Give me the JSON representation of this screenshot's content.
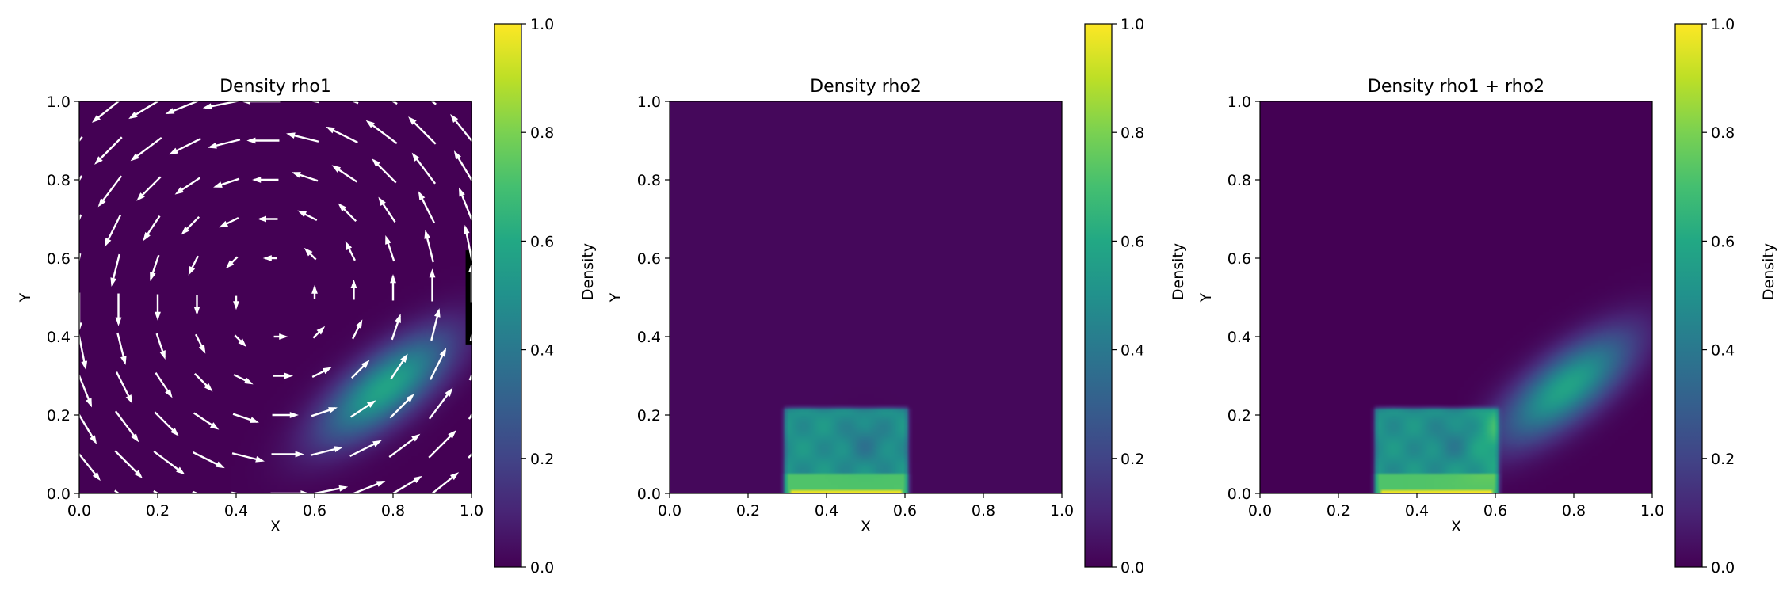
{
  "chart_data": [
    {
      "type": "heatmap",
      "title": "Density rho1",
      "xlabel": "X",
      "ylabel": "Y",
      "xlim": [
        0,
        1
      ],
      "ylim": [
        0,
        1
      ],
      "xticks": [
        "0.0",
        "0.2",
        "0.4",
        "0.6",
        "0.8",
        "1.0"
      ],
      "yticks": [
        "0.0",
        "0.2",
        "0.4",
        "0.6",
        "0.8",
        "1.0"
      ],
      "colormap": "viridis",
      "colorbar": {
        "label": "Density",
        "range": [
          0,
          1
        ],
        "ticks": [
          "0.0",
          "0.2",
          "0.4",
          "0.6",
          "0.8",
          "1.0"
        ]
      },
      "field": {
        "background": 0.0,
        "blobs": [
          {
            "cx": 0.78,
            "cy": 0.27,
            "sx": 0.14,
            "sy": 0.055,
            "angle_deg": 38,
            "peak": 0.58
          }
        ]
      },
      "obstacle": {
        "x": [
          0.985,
          1.0
        ],
        "y": [
          0.38,
          0.62
        ],
        "color": "#000000"
      },
      "quiver": {
        "color": "#ffffff",
        "vortex_center": [
          0.5,
          0.5
        ],
        "grid_x": [
          0.0,
          0.1,
          0.2,
          0.3,
          0.4,
          0.5,
          0.6,
          0.7,
          0.8,
          0.9,
          1.0
        ],
        "grid_y": [
          0.0,
          0.1,
          0.2,
          0.3,
          0.4,
          0.5,
          0.6,
          0.7,
          0.8,
          0.9,
          1.0
        ],
        "rotation": "counterclockwise"
      }
    },
    {
      "type": "heatmap",
      "title": "Density rho2",
      "xlabel": "X",
      "ylabel": "Y",
      "xlim": [
        0,
        1
      ],
      "ylim": [
        0,
        1
      ],
      "xticks": [
        "0.0",
        "0.2",
        "0.4",
        "0.6",
        "0.8",
        "1.0"
      ],
      "yticks": [
        "0.0",
        "0.2",
        "0.4",
        "0.6",
        "0.8",
        "1.0"
      ],
      "colormap": "viridis",
      "colorbar": {
        "label": "Density",
        "range": [
          0,
          1
        ],
        "ticks": [
          "0.0",
          "0.2",
          "0.4",
          "0.6",
          "0.8",
          "1.0"
        ]
      },
      "field": {
        "background": 0.02,
        "box": {
          "x": [
            0.3,
            0.6
          ],
          "y": [
            0.0,
            0.21
          ],
          "value": 0.55,
          "bottom_band": {
            "y": [
              0.0,
              0.012
            ],
            "value": 0.98
          }
        },
        "blobs": [
          {
            "cx": 0.5,
            "cy": 0.13,
            "sx": 0.04,
            "sy": 0.04,
            "angle_deg": 0,
            "peak": -0.1
          }
        ]
      }
    },
    {
      "type": "heatmap",
      "title": "Density rho1 + rho2",
      "xlabel": "X",
      "ylabel": "Y",
      "xlim": [
        0,
        1
      ],
      "ylim": [
        0,
        1
      ],
      "xticks": [
        "0.0",
        "0.2",
        "0.4",
        "0.6",
        "0.8",
        "1.0"
      ],
      "yticks": [
        "0.0",
        "0.2",
        "0.4",
        "0.6",
        "0.8",
        "1.0"
      ],
      "colormap": "viridis",
      "colorbar": {
        "label": "Density",
        "range": [
          0,
          1
        ],
        "ticks": [
          "0.0",
          "0.2",
          "0.4",
          "0.6",
          "0.8",
          "1.0"
        ]
      },
      "field": {
        "background": 0.0,
        "box": {
          "x": [
            0.3,
            0.6
          ],
          "y": [
            0.0,
            0.21
          ],
          "value": 0.55,
          "bottom_band": {
            "y": [
              0.0,
              0.012
            ],
            "value": 0.98
          }
        },
        "blobs": [
          {
            "cx": 0.78,
            "cy": 0.27,
            "sx": 0.14,
            "sy": 0.055,
            "angle_deg": 38,
            "peak": 0.58
          },
          {
            "cx": 0.5,
            "cy": 0.13,
            "sx": 0.04,
            "sy": 0.04,
            "angle_deg": 0,
            "peak": -0.1
          }
        ]
      }
    }
  ]
}
